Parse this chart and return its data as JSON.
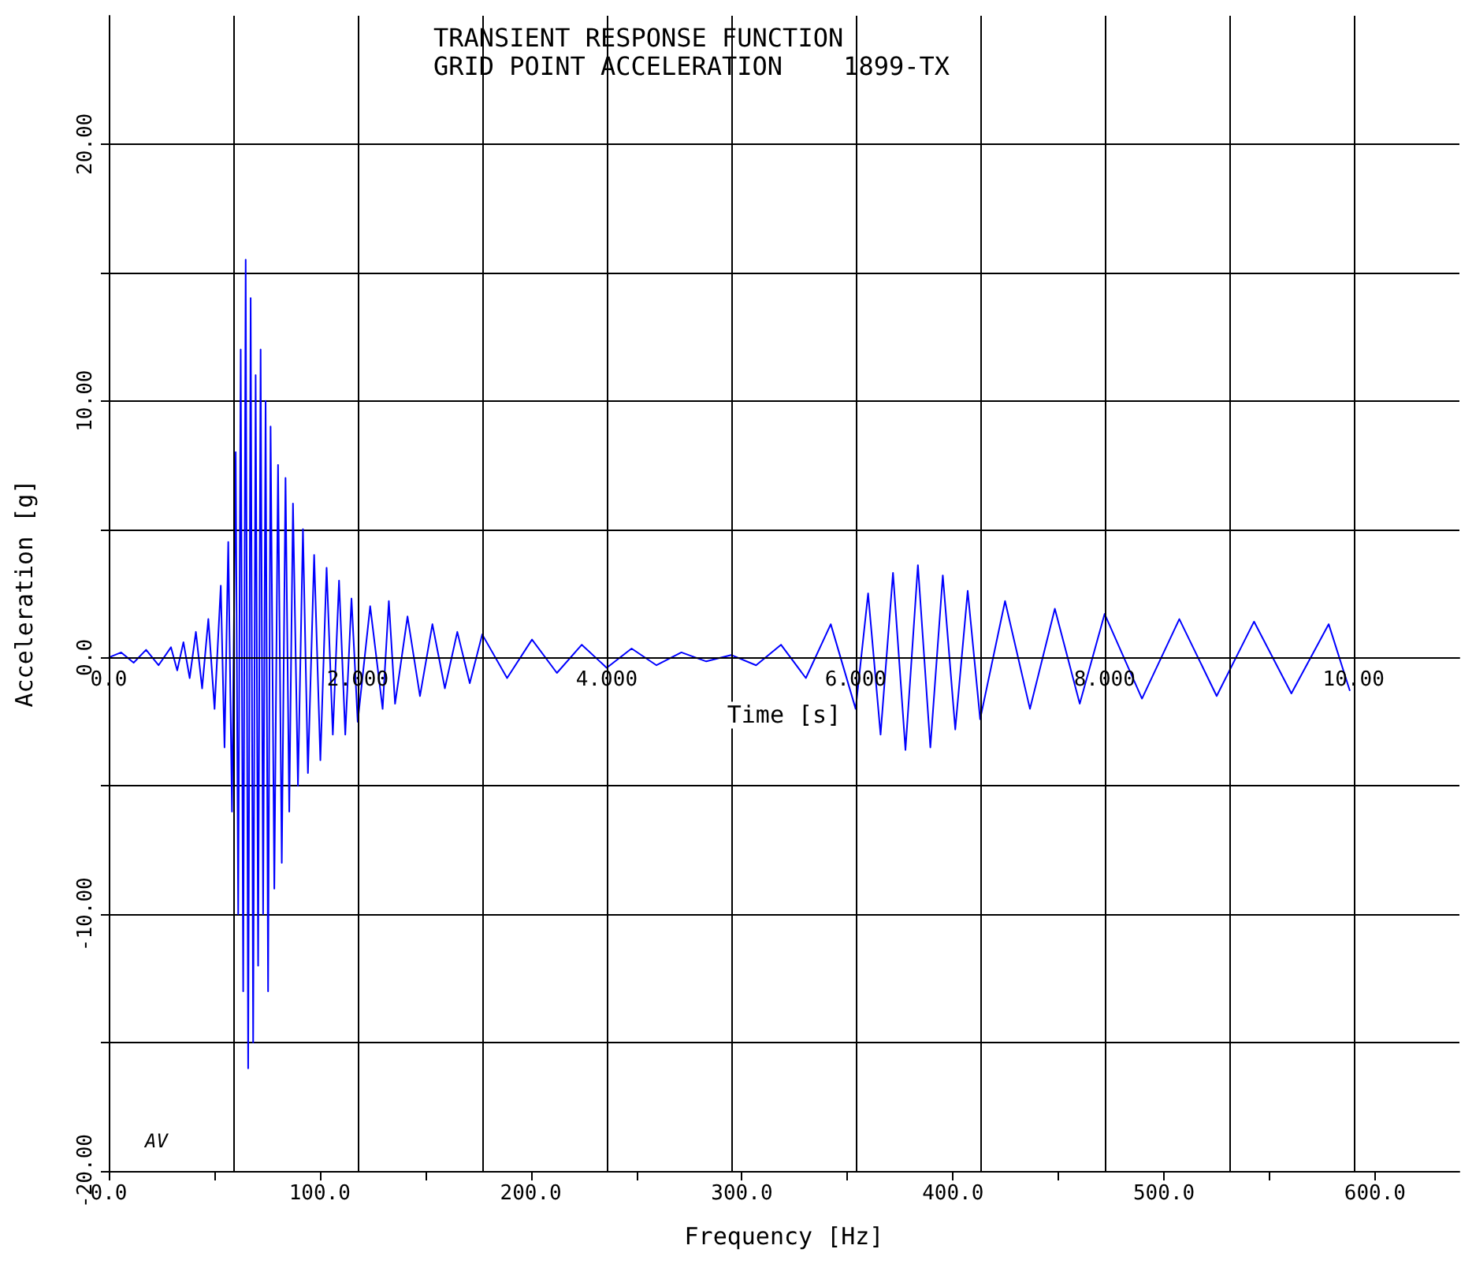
{
  "chart_data": {
    "type": "line",
    "title": "TRANSIENT RESPONSE FUNCTION",
    "subtitle": "GRID POINT ACCELERATION    1899-TX",
    "xlabel": "Frequency [Hz]",
    "x2label": "Time [s]",
    "ylabel": "Acceleration [g]",
    "annotations": [
      "AV"
    ],
    "xlim": [
      0,
      640
    ],
    "xticks": [
      {
        "value": 0,
        "label": "0.0"
      },
      {
        "value": 50,
        "label": null
      },
      {
        "value": 100,
        "label": "100.0"
      },
      {
        "value": 150,
        "label": null
      },
      {
        "value": 200,
        "label": "200.0"
      },
      {
        "value": 250,
        "label": null
      },
      {
        "value": 300,
        "label": "300.0"
      },
      {
        "value": 350,
        "label": null
      },
      {
        "value": 400,
        "label": "400.0"
      },
      {
        "value": 450,
        "label": null
      },
      {
        "value": 500,
        "label": "500.0"
      },
      {
        "value": 550,
        "label": null
      },
      {
        "value": 600,
        "label": "600.0"
      }
    ],
    "x2lim": [
      0,
      10.85
    ],
    "x2ticks": [
      {
        "value": 0,
        "label": "0.0"
      },
      {
        "value": 1,
        "label": null
      },
      {
        "value": 2,
        "label": "2.000"
      },
      {
        "value": 3,
        "label": null
      },
      {
        "value": 4,
        "label": "4.000"
      },
      {
        "value": 5,
        "label": null
      },
      {
        "value": 6,
        "label": "6.000"
      },
      {
        "value": 7,
        "label": null
      },
      {
        "value": 8,
        "label": "8.000"
      },
      {
        "value": 9,
        "label": null
      },
      {
        "value": 10,
        "label": "10.00"
      }
    ],
    "ylim": [
      -20,
      25
    ],
    "yticks": [
      {
        "value": -20,
        "label": "-20.00"
      },
      {
        "value": -15,
        "label": null
      },
      {
        "value": -10,
        "label": "-10.00"
      },
      {
        "value": -5,
        "label": null
      },
      {
        "value": 0,
        "label": "0.0"
      },
      {
        "value": 5,
        "label": null
      },
      {
        "value": 10,
        "label": "10.00"
      },
      {
        "value": 15,
        "label": null
      },
      {
        "value": 20,
        "label": "20.00"
      }
    ],
    "grid": true,
    "marker": "none",
    "line_style": "solid",
    "series": [
      {
        "color": "#0000ff",
        "axis": "x2",
        "x": [
          0,
          0.1,
          0.2,
          0.3,
          0.4,
          0.5,
          0.55,
          0.6,
          0.65,
          0.7,
          0.75,
          0.8,
          0.85,
          0.9,
          0.93,
          0.96,
          0.99,
          1.02,
          1.04,
          1.06,
          1.08,
          1.1,
          1.12,
          1.14,
          1.16,
          1.18,
          1.2,
          1.22,
          1.24,
          1.26,
          1.28,
          1.3,
          1.33,
          1.36,
          1.39,
          1.42,
          1.45,
          1.48,
          1.52,
          1.56,
          1.6,
          1.65,
          1.7,
          1.75,
          1.8,
          1.85,
          1.9,
          1.95,
          2.0,
          2.1,
          2.2,
          2.25,
          2.3,
          2.4,
          2.5,
          2.6,
          2.7,
          2.8,
          2.9,
          3.0,
          3.2,
          3.4,
          3.6,
          3.8,
          4.0,
          4.2,
          4.4,
          4.6,
          4.8,
          5.0,
          5.2,
          5.4,
          5.6,
          5.8,
          6.0,
          6.1,
          6.2,
          6.3,
          6.4,
          6.5,
          6.6,
          6.7,
          6.8,
          6.9,
          7.0,
          7.2,
          7.4,
          7.6,
          7.8,
          8.0,
          8.3,
          8.6,
          8.9,
          9.2,
          9.5,
          9.8,
          9.97
        ],
        "values": [
          0,
          0.2,
          -0.2,
          0.3,
          -0.3,
          0.4,
          -0.5,
          0.6,
          -0.8,
          1.0,
          -1.2,
          1.5,
          -2.0,
          2.8,
          -3.5,
          4.5,
          -6,
          8,
          -10,
          12,
          -13,
          15.5,
          -16,
          14,
          -15,
          11,
          -12,
          12,
          -10,
          10,
          -13,
          9,
          -9,
          7.5,
          -8,
          7,
          -6,
          6,
          -5,
          5,
          -4.5,
          4,
          -4,
          3.5,
          -3,
          3,
          -3,
          2.3,
          -2.5,
          2.0,
          -2.0,
          2.2,
          -1.8,
          1.6,
          -1.5,
          1.3,
          -1.2,
          1.0,
          -1.0,
          0.9,
          -0.8,
          0.7,
          -0.6,
          0.5,
          -0.4,
          0.35,
          -0.3,
          0.2,
          -0.15,
          0.1,
          -0.3,
          0.5,
          -0.8,
          1.3,
          -2.0,
          2.5,
          -3.0,
          3.3,
          -3.6,
          3.6,
          -3.5,
          3.2,
          -2.8,
          2.6,
          -2.4,
          2.2,
          -2.0,
          1.9,
          -1.8,
          1.7,
          -1.6,
          1.5,
          -1.5,
          1.4,
          -1.4,
          1.3,
          -1.3
        ]
      }
    ]
  }
}
